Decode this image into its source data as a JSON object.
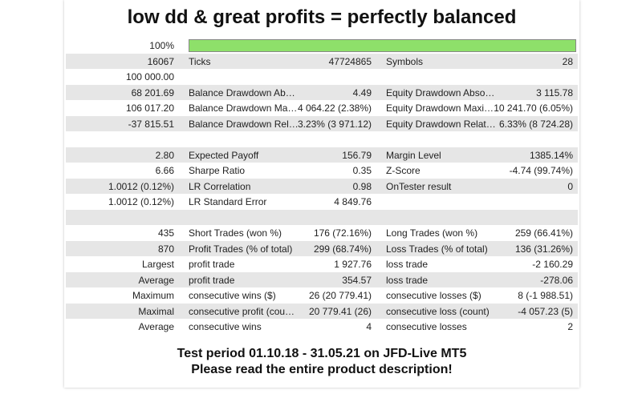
{
  "header": {
    "title": "low dd & great profits = perfectly balanced"
  },
  "report": {
    "progress": {
      "label": "100%",
      "value": 100
    },
    "rows": [
      [
        "16067",
        "Ticks",
        "47724865",
        "Symbols",
        "28"
      ],
      [
        "100 000.00",
        null,
        null,
        null,
        null
      ],
      [
        "68 201.69",
        "Balance Drawdown Ab…",
        "4.49",
        "Equity Drawdown Abso…",
        "3 115.78"
      ],
      [
        "106 017.20",
        "Balance Drawdown Ma…",
        "4 064.22 (2.38%)",
        "Equity Drawdown Maxi…",
        "10 241.70 (6.05%)"
      ],
      [
        "-37 815.51",
        "Balance Drawdown Rel…",
        "3.23% (3 971.12)",
        "Equity Drawdown Relat…",
        "6.33% (8 724.28)"
      ],
      [],
      [
        "2.80",
        "Expected Payoff",
        "156.79",
        "Margin Level",
        "1385.14%"
      ],
      [
        "6.66",
        "Sharpe Ratio",
        "0.35",
        "Z-Score",
        "-4.74 (99.74%)"
      ],
      [
        "1.0012 (0.12%)",
        "LR Correlation",
        "0.98",
        "OnTester result",
        "0"
      ],
      [
        "1.0012 (0.12%)",
        "LR Standard Error",
        "4 849.76",
        null,
        null
      ],
      [],
      [
        "435",
        "Short Trades (won %)",
        "176 (72.16%)",
        "Long Trades (won %)",
        "259 (66.41%)"
      ],
      [
        "870",
        "Profit Trades (% of total)",
        "299 (68.74%)",
        "Loss Trades (% of total)",
        "136 (31.26%)"
      ],
      [
        "Largest",
        "profit trade",
        "1 927.76",
        "loss trade",
        "-2 160.29"
      ],
      [
        "Average",
        "profit trade",
        "354.57",
        "loss trade",
        "-278.06"
      ],
      [
        "Maximum",
        "consecutive wins ($)",
        "26 (20 779.41)",
        "consecutive losses ($)",
        "8 (-1 988.51)"
      ],
      [
        "Maximal",
        "consecutive profit (cou…",
        "20 779.41 (26)",
        "consecutive loss (count)",
        "-4 057.23 (5)"
      ],
      [
        "Average",
        "consecutive wins",
        "4",
        "consecutive losses",
        "2"
      ]
    ]
  },
  "footer": {
    "lines": [
      "Test period 01.10.18 - 31.05.21 on JFD-Live MT5",
      "Please read the entire product description!"
    ]
  }
}
